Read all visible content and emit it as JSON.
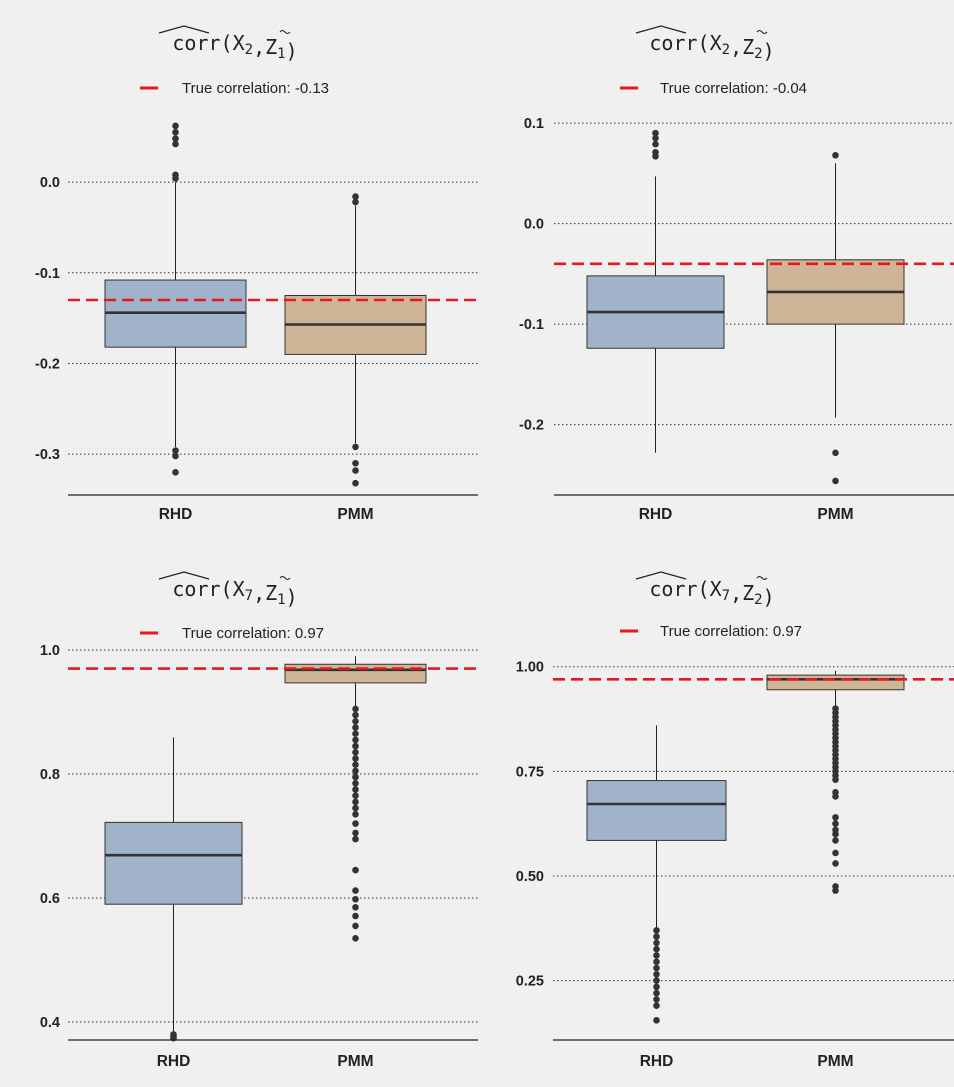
{
  "chart_data": [
    {
      "type": "box",
      "title": "corr(X2,Z1)",
      "title_parts": {
        "a": "X",
        "a_sub": "2",
        "b": "Z",
        "b_sub": "1"
      },
      "legend": "True correlation: -0.13",
      "true_value": -0.13,
      "ylim": [
        -0.345,
        0.085
      ],
      "yticks": [
        0.0,
        -0.1,
        -0.2,
        -0.3
      ],
      "ytick_labels": [
        "0.0",
        "-0.1",
        "-0.2",
        "-0.3"
      ],
      "categories": [
        "RHD",
        "PMM"
      ],
      "boxes": [
        {
          "q1": -0.182,
          "median": -0.144,
          "q3": -0.108,
          "whisker_low": -0.292,
          "whisker_high": 0.0,
          "outliers": [
            0.062,
            0.055,
            0.048,
            0.042,
            0.008,
            0.004,
            -0.296,
            -0.302,
            -0.32
          ]
        },
        {
          "q1": -0.19,
          "median": -0.157,
          "q3": -0.125,
          "whisker_low": -0.288,
          "whisker_high": -0.026,
          "outliers": [
            -0.016,
            -0.022,
            -0.292,
            -0.31,
            -0.318,
            -0.332
          ]
        }
      ],
      "grid": "horizontal dotted"
    },
    {
      "type": "box",
      "title": "corr(X2,Z2)",
      "title_parts": {
        "a": "X",
        "a_sub": "2",
        "b": "Z",
        "b_sub": "2"
      },
      "legend": "True correlation: -0.04",
      "true_value": -0.04,
      "ylim": [
        -0.27,
        0.118
      ],
      "yticks": [
        0.1,
        0.0,
        -0.1,
        -0.2
      ],
      "ytick_labels": [
        "0.1",
        "0.0",
        "-0.1",
        "-0.2"
      ],
      "categories": [
        "RHD",
        "PMM"
      ],
      "boxes": [
        {
          "q1": -0.124,
          "median": -0.088,
          "q3": -0.052,
          "whisker_low": -0.228,
          "whisker_high": 0.047,
          "outliers": [
            0.09,
            0.085,
            0.079,
            0.071,
            0.067
          ]
        },
        {
          "q1": -0.1,
          "median": -0.068,
          "q3": -0.036,
          "whisker_low": -0.193,
          "whisker_high": 0.06,
          "outliers": [
            0.068,
            -0.228,
            -0.256
          ]
        }
      ],
      "grid": "horizontal dotted"
    },
    {
      "type": "box",
      "title": "corr(X7,Z1)",
      "title_parts": {
        "a": "X",
        "a_sub": "7",
        "b": "Z",
        "b_sub": "1"
      },
      "legend": "True correlation: 0.97",
      "true_value": 0.97,
      "ylim": [
        0.371,
        1.0
      ],
      "yticks": [
        1.0,
        0.8,
        0.6,
        0.4
      ],
      "ytick_labels": [
        "1.0",
        "0.8",
        "0.6",
        "0.4"
      ],
      "categories": [
        "RHD",
        "PMM"
      ],
      "boxes": [
        {
          "q1": 0.59,
          "median": 0.669,
          "q3": 0.722,
          "whisker_low": 0.385,
          "whisker_high": 0.859,
          "outliers": [
            0.38,
            0.377,
            0.374
          ]
        },
        {
          "q1": 0.947,
          "median": 0.968,
          "q3": 0.977,
          "whisker_low": 0.908,
          "whisker_high": 0.99,
          "outliers": [
            0.905,
            0.895,
            0.885,
            0.875,
            0.865,
            0.855,
            0.845,
            0.835,
            0.825,
            0.815,
            0.805,
            0.795,
            0.785,
            0.775,
            0.765,
            0.755,
            0.745,
            0.735,
            0.72,
            0.705,
            0.695,
            0.645,
            0.612,
            0.598,
            0.585,
            0.571,
            0.555,
            0.535
          ]
        }
      ],
      "grid": "horizontal dotted"
    },
    {
      "type": "box",
      "title": "corr(X7,Z2)",
      "title_parts": {
        "a": "X",
        "a_sub": "7",
        "b": "Z",
        "b_sub": "2"
      },
      "legend": "True correlation: 0.97",
      "true_value": 0.97,
      "ylim": [
        0.108,
        1.04
      ],
      "yticks": [
        1.0,
        0.75,
        0.5,
        0.25
      ],
      "ytick_labels": [
        "1.00",
        "0.75",
        "0.50",
        "0.25"
      ],
      "categories": [
        "RHD",
        "PMM"
      ],
      "boxes": [
        {
          "q1": 0.585,
          "median": 0.672,
          "q3": 0.728,
          "whisker_low": 0.375,
          "whisker_high": 0.86,
          "outliers": [
            0.37,
            0.355,
            0.34,
            0.325,
            0.31,
            0.295,
            0.28,
            0.265,
            0.25,
            0.235,
            0.22,
            0.205,
            0.19,
            0.155
          ]
        },
        {
          "q1": 0.945,
          "median": 0.97,
          "q3": 0.98,
          "whisker_low": 0.905,
          "whisker_high": 0.99,
          "outliers": [
            0.9,
            0.89,
            0.88,
            0.87,
            0.86,
            0.85,
            0.84,
            0.83,
            0.82,
            0.81,
            0.8,
            0.79,
            0.78,
            0.77,
            0.76,
            0.75,
            0.74,
            0.73,
            0.7,
            0.69,
            0.64,
            0.625,
            0.61,
            0.6,
            0.585,
            0.555,
            0.53,
            0.475,
            0.465
          ]
        }
      ],
      "grid": "horizontal dotted"
    }
  ],
  "colors": {
    "panel_bg": "#f0f0f0",
    "box_rhd": "#a0b3cb",
    "box_pmm": "#cfb498",
    "true_line": "#e41a1c",
    "grid": "#333333",
    "ink": "#222222"
  }
}
